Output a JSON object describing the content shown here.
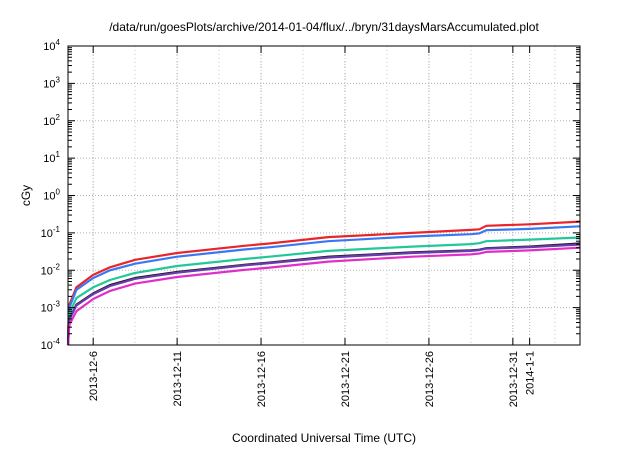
{
  "chart_data": {
    "type": "line",
    "title": "/data/run/goesPlots/archive/2014-01-04/flux/../bryn/31daysMarsAccumulated.plot",
    "xlabel": "Coordinated Universal Time (UTC)",
    "ylabel": "cGy",
    "yscale": "log",
    "ylim": [
      0.0001,
      10000
    ],
    "xlim": [
      "2013-12-04T12:00",
      "2014-01-04T00:00"
    ],
    "grid": true,
    "y_ticks": [
      {
        "value": 0.0001,
        "base": "10",
        "exp": "-4"
      },
      {
        "value": 0.001,
        "base": "10",
        "exp": "-3"
      },
      {
        "value": 0.01,
        "base": "10",
        "exp": "-2"
      },
      {
        "value": 0.1,
        "base": "10",
        "exp": "-1"
      },
      {
        "value": 1,
        "base": "10",
        "exp": "0"
      },
      {
        "value": 10,
        "base": "10",
        "exp": "1"
      },
      {
        "value": 100,
        "base": "10",
        "exp": "2"
      },
      {
        "value": 1000,
        "base": "10",
        "exp": "3"
      },
      {
        "value": 10000,
        "base": "10",
        "exp": "4"
      }
    ],
    "x_ticks": [
      {
        "date": "2013-12-06",
        "label": "2013-12-6"
      },
      {
        "date": "2013-12-11",
        "label": "2013-12-11"
      },
      {
        "date": "2013-12-16",
        "label": "2013-12-16"
      },
      {
        "date": "2013-12-21",
        "label": "2013-12-21"
      },
      {
        "date": "2013-12-26",
        "label": "2013-12-26"
      },
      {
        "date": "2013-12-31",
        "label": "2013-12-31"
      },
      {
        "date": "2014-01-01",
        "label": "2014-1-1"
      }
    ],
    "series": [
      {
        "color": "#e8262a",
        "x": [
          "2013-12-04T12:00",
          "2013-12-04T14:00",
          "2013-12-05T00:00",
          "2013-12-06T00:00",
          "2013-12-07T00:00",
          "2013-12-08T12:00",
          "2013-12-11T00:00",
          "2013-12-15T00:00",
          "2013-12-16T12:00",
          "2013-12-20T00:00",
          "2013-12-25T00:00",
          "2013-12-28T12:00",
          "2013-12-29T00:00",
          "2013-12-29T10:00",
          "2014-01-01T00:00",
          "2014-01-04T00:00"
        ],
        "y": [
          0.0002,
          0.0012,
          0.0035,
          0.0075,
          0.012,
          0.019,
          0.029,
          0.045,
          0.052,
          0.077,
          0.1,
          0.12,
          0.125,
          0.155,
          0.17,
          0.2
        ]
      },
      {
        "color": "#3a78f2",
        "x": [
          "2013-12-04T12:00",
          "2013-12-04T14:00",
          "2013-12-05T00:00",
          "2013-12-06T00:00",
          "2013-12-07T00:00",
          "2013-12-08T12:00",
          "2013-12-11T00:00",
          "2013-12-15T00:00",
          "2013-12-16T12:00",
          "2013-12-20T00:00",
          "2013-12-25T00:00",
          "2013-12-28T12:00",
          "2013-12-29T00:00",
          "2013-12-29T10:00",
          "2014-01-01T00:00",
          "2014-01-04T00:00"
        ],
        "y": [
          0.00015,
          0.001,
          0.003,
          0.0062,
          0.01,
          0.015,
          0.023,
          0.036,
          0.041,
          0.06,
          0.08,
          0.092,
          0.097,
          0.118,
          0.128,
          0.15
        ]
      },
      {
        "color": "#22c79a",
        "x": [
          "2013-12-04T12:00",
          "2013-12-04T14:00",
          "2013-12-05T00:00",
          "2013-12-06T00:00",
          "2013-12-07T00:00",
          "2013-12-08T12:00",
          "2013-12-11T00:00",
          "2013-12-15T00:00",
          "2013-12-16T12:00",
          "2013-12-20T00:00",
          "2013-12-25T00:00",
          "2013-12-28T12:00",
          "2013-12-29T00:00",
          "2013-12-29T10:00",
          "2014-01-01T00:00",
          "2014-01-04T00:00"
        ],
        "y": [
          0.00012,
          0.0007,
          0.0018,
          0.0035,
          0.0055,
          0.0085,
          0.013,
          0.02,
          0.023,
          0.033,
          0.043,
          0.05,
          0.053,
          0.06,
          0.066,
          0.075
        ]
      },
      {
        "color": "#1a1a1a",
        "x": [
          "2013-12-04T12:00",
          "2013-12-04T14:00",
          "2013-12-05T00:00",
          "2013-12-06T00:00",
          "2013-12-07T00:00",
          "2013-12-08T12:00",
          "2013-12-11T00:00",
          "2013-12-15T00:00",
          "2013-12-16T12:00",
          "2013-12-20T00:00",
          "2013-12-25T00:00",
          "2013-12-28T12:00",
          "2013-12-29T00:00",
          "2013-12-29T10:00",
          "2014-01-01T00:00",
          "2014-01-04T00:00"
        ],
        "y": [
          0.0001,
          0.0005,
          0.0012,
          0.0024,
          0.004,
          0.0062,
          0.009,
          0.014,
          0.016,
          0.023,
          0.03,
          0.034,
          0.0355,
          0.039,
          0.043,
          0.052
        ]
      },
      {
        "color": "#6a3bb0",
        "x": [
          "2013-12-04T12:00",
          "2013-12-04T14:00",
          "2013-12-05T00:00",
          "2013-12-06T00:00",
          "2013-12-07T00:00",
          "2013-12-08T12:00",
          "2013-12-11T00:00",
          "2013-12-15T00:00",
          "2013-12-16T12:00",
          "2013-12-20T00:00",
          "2013-12-25T00:00",
          "2013-12-28T12:00",
          "2013-12-29T00:00",
          "2013-12-29T10:00",
          "2014-01-01T00:00",
          "2014-01-04T00:00"
        ],
        "y": [
          0.0001,
          0.00048,
          0.00115,
          0.0023,
          0.0038,
          0.0059,
          0.0086,
          0.0135,
          0.0155,
          0.022,
          0.029,
          0.033,
          0.0345,
          0.038,
          0.0415,
          0.049
        ]
      },
      {
        "color": "#e02fc8",
        "x": [
          "2013-12-04T12:00",
          "2013-12-04T14:00",
          "2013-12-05T00:00",
          "2013-12-06T00:00",
          "2013-12-07T00:00",
          "2013-12-08T12:00",
          "2013-12-11T00:00",
          "2013-12-15T00:00",
          "2013-12-16T12:00",
          "2013-12-20T00:00",
          "2013-12-25T00:00",
          "2013-12-28T12:00",
          "2013-12-29T00:00",
          "2013-12-29T10:00",
          "2014-01-01T00:00",
          "2014-01-04T00:00"
        ],
        "y": [
          0.0001,
          0.00035,
          0.0008,
          0.0017,
          0.0028,
          0.0044,
          0.0066,
          0.0102,
          0.0118,
          0.017,
          0.023,
          0.0265,
          0.028,
          0.031,
          0.034,
          0.04
        ]
      }
    ]
  }
}
